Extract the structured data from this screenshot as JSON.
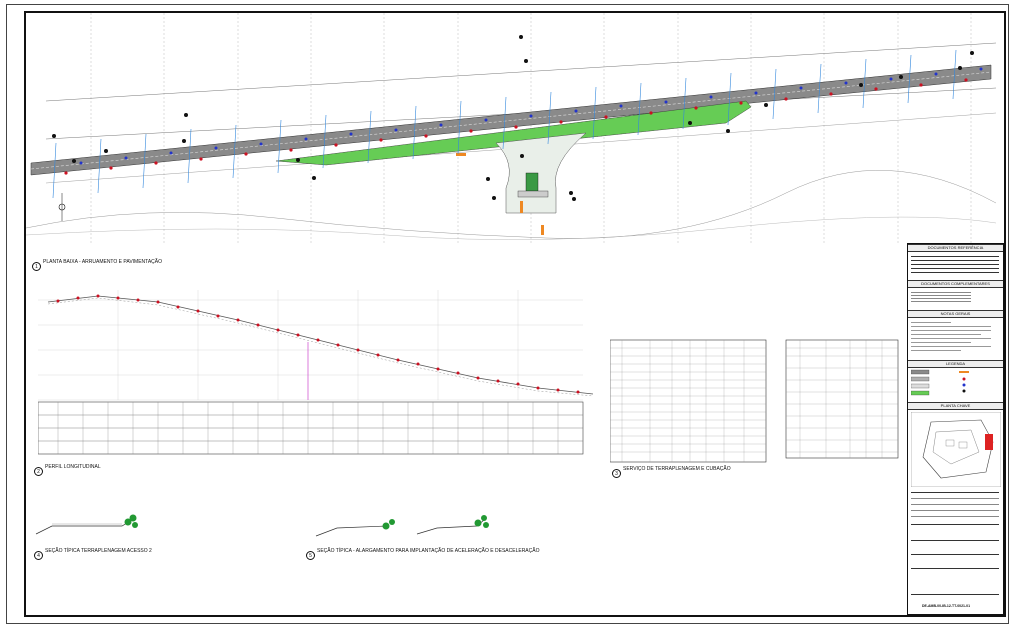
{
  "views": {
    "plan": {
      "number": "1",
      "title": "PLANTA BAIXA - ARRUAMENTO E PAVIMENTAÇÃO"
    },
    "profile": {
      "number": "2",
      "title": "PERFIL LONGITUDINAL"
    },
    "earthwork": {
      "number": "3",
      "title": "SERVIÇO  DE TERRAPLENAGEM E CUBAÇÃO"
    },
    "section_a": {
      "number": "4",
      "title": "SEÇÃO TÍPICA TERRAPLENAGEM ACESSO 2"
    },
    "section_b": {
      "number": "5",
      "title": "SEÇÃO TÍPICA - ALARGAMENTO PARA IMPLANTAÇÃO DE ACELERAÇÃO E DESACELERAÇÃO"
    }
  },
  "title_block": {
    "reference_docs": "DOCUMENTOS REFERÊNCIA",
    "complementary_docs": "DOCUMENTOS COMPLEMENTARES",
    "general_notes": "NOTAS GERAIS",
    "legend": "LEGENDA",
    "key_plan": "PLANTA CHAVE",
    "drawing_number": "DE-AMB-00-IB-12-TT-0021-01"
  },
  "colors": {
    "road_gray": "#8a8a8a",
    "median_green": "#66cc55",
    "marker_red": "#cc1122",
    "marker_blue": "#2233cc",
    "station_blue": "#3388dd",
    "profile_line": "#555555",
    "tree_green": "#229933",
    "orange": "#ee8822",
    "key_red": "#dd2222"
  }
}
